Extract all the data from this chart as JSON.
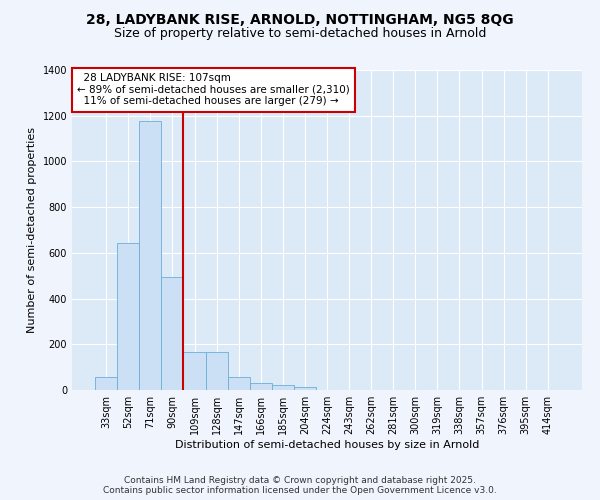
{
  "title_line1": "28, LADYBANK RISE, ARNOLD, NOTTINGHAM, NG5 8QG",
  "title_line2": "Size of property relative to semi-detached houses in Arnold",
  "xlabel": "Distribution of semi-detached houses by size in Arnold",
  "ylabel": "Number of semi-detached properties",
  "bar_color": "#cce0f5",
  "bar_edge_color": "#6baed6",
  "background_color": "#dce9f7",
  "grid_color": "#ffffff",
  "fig_bg_color": "#f0f4fc",
  "categories": [
    "33sqm",
    "52sqm",
    "71sqm",
    "90sqm",
    "109sqm",
    "128sqm",
    "147sqm",
    "166sqm",
    "185sqm",
    "204sqm",
    "224sqm",
    "243sqm",
    "262sqm",
    "281sqm",
    "300sqm",
    "319sqm",
    "338sqm",
    "357sqm",
    "376sqm",
    "395sqm",
    "414sqm"
  ],
  "values": [
    55,
    645,
    1175,
    495,
    165,
    165,
    55,
    30,
    20,
    15,
    0,
    0,
    0,
    0,
    0,
    0,
    0,
    0,
    0,
    0,
    0
  ],
  "ylim": [
    0,
    1400
  ],
  "yticks": [
    0,
    200,
    400,
    600,
    800,
    1000,
    1200,
    1400
  ],
  "marker_label": "28 LADYBANK RISE: 107sqm",
  "pct_smaller": "89",
  "n_smaller": "2,310",
  "pct_larger": "11",
  "n_larger": "279",
  "annotation_box_color": "#ffffff",
  "annotation_box_edge": "#cc0000",
  "red_line_color": "#cc0000",
  "footer_line1": "Contains HM Land Registry data © Crown copyright and database right 2025.",
  "footer_line2": "Contains public sector information licensed under the Open Government Licence v3.0.",
  "title_fontsize": 10,
  "subtitle_fontsize": 9,
  "axis_label_fontsize": 8,
  "tick_fontsize": 7,
  "annotation_fontsize": 7.5,
  "footer_fontsize": 6.5
}
